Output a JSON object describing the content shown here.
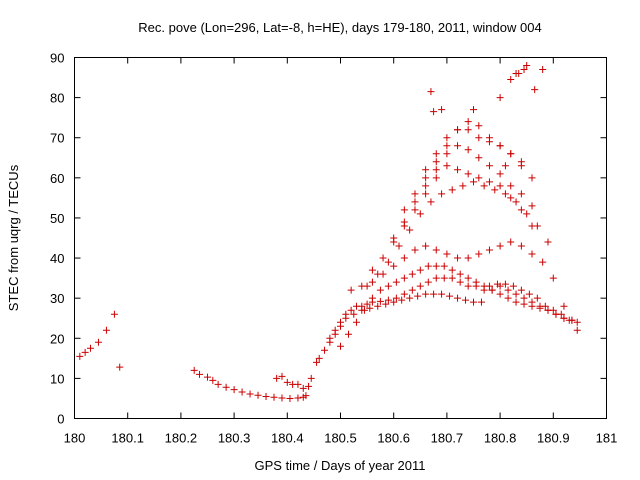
{
  "chart_data": {
    "type": "scatter",
    "title": "Rec. pove (Lon=296, Lat=-8, h=HE), days 179-180, 2011, window 004",
    "xlabel": "GPS time / Days of year 2011",
    "ylabel": "STEC from uqrg / TECUs",
    "xlim": [
      180,
      181
    ],
    "ylim": [
      0,
      90
    ],
    "xticks": [
      180,
      180.1,
      180.2,
      180.3,
      180.4,
      180.5,
      180.6,
      180.7,
      180.8,
      180.9,
      181
    ],
    "xtick_labels": [
      "180",
      "180.1",
      "180.2",
      "180.3",
      "180.4",
      "180.5",
      "180.6",
      "180.7",
      "180.8",
      "180.9",
      "181"
    ],
    "yticks": [
      0,
      10,
      20,
      30,
      40,
      50,
      60,
      70,
      80,
      90
    ],
    "ytick_labels": [
      "0",
      "10",
      "20",
      "30",
      "40",
      "50",
      "60",
      "70",
      "80",
      "90"
    ],
    "grid": false,
    "marker": "+",
    "color": "#cc0000",
    "x": [
      180.01,
      180.02,
      180.03,
      180.045,
      180.06,
      180.075,
      180.085,
      180.225,
      180.235,
      180.25,
      180.26,
      180.27,
      180.285,
      180.3,
      180.315,
      180.33,
      180.345,
      180.36,
      180.375,
      180.39,
      180.405,
      180.42,
      180.43,
      180.435,
      180.38,
      180.39,
      180.4,
      180.41,
      180.42,
      180.43,
      180.44,
      180.445,
      180.455,
      180.46,
      180.47,
      180.48,
      180.49,
      180.5,
      180.51,
      180.52,
      180.53,
      180.54,
      180.55,
      180.56,
      180.575,
      180.59,
      180.605,
      180.62,
      180.635,
      180.65,
      180.665,
      180.68,
      180.695,
      180.71,
      180.725,
      180.74,
      180.755,
      180.77,
      180.785,
      180.8,
      180.815,
      180.83,
      180.845,
      180.86,
      180.875,
      180.89,
      180.905,
      180.92,
      180.935,
      180.945,
      180.48,
      180.49,
      180.5,
      180.51,
      180.525,
      180.54,
      180.555,
      180.57,
      180.585,
      180.6,
      180.615,
      180.63,
      180.645,
      180.66,
      180.675,
      180.69,
      180.705,
      180.72,
      180.735,
      180.75,
      180.765,
      180.78,
      180.795,
      180.81,
      180.825,
      180.84,
      180.855,
      180.87,
      180.885,
      180.9,
      180.915,
      180.93,
      180.945,
      180.5,
      180.515,
      180.53,
      180.545,
      180.56,
      180.575,
      180.59,
      180.605,
      180.62,
      180.635,
      180.65,
      180.665,
      180.68,
      180.695,
      180.71,
      180.725,
      180.74,
      180.755,
      180.77,
      180.785,
      180.8,
      180.815,
      180.83,
      180.845,
      180.86,
      180.875,
      180.89,
      180.905,
      180.92,
      180.935,
      180.52,
      180.54,
      180.56,
      180.58,
      180.6,
      180.62,
      180.64,
      180.66,
      180.68,
      180.7,
      180.72,
      180.74,
      180.76,
      180.78,
      180.8,
      180.82,
      180.84,
      180.86,
      180.88,
      180.9,
      180.92,
      180.55,
      180.57,
      180.59,
      180.61,
      180.63,
      180.65,
      180.67,
      180.69,
      180.71,
      180.73,
      180.75,
      180.77,
      180.79,
      180.81,
      180.83,
      180.85,
      180.87,
      180.89,
      180.56,
      180.58,
      180.6,
      180.62,
      180.64,
      180.66,
      180.68,
      180.7,
      180.72,
      180.74,
      180.76,
      180.78,
      180.8,
      180.82,
      180.84,
      180.86,
      180.6,
      180.62,
      180.64,
      180.66,
      180.68,
      180.7,
      180.72,
      180.74,
      180.76,
      180.78,
      180.8,
      180.82,
      180.84,
      180.86,
      180.62,
      180.64,
      180.66,
      180.68,
      180.7,
      180.72,
      180.74,
      180.76,
      180.78,
      180.8,
      180.82,
      180.84,
      180.66,
      180.68,
      180.7,
      180.72,
      180.74,
      180.76,
      180.78,
      180.8,
      180.82,
      180.84,
      180.86,
      180.82,
      180.83,
      180.845,
      180.865,
      180.88,
      180.85,
      180.835,
      180.8,
      180.81,
      180.75,
      180.67,
      180.675,
      180.69
    ],
    "y": [
      15.5,
      16.5,
      17.5,
      19,
      22,
      26,
      12.8,
      12,
      11,
      10.3,
      9.5,
      8.5,
      7.8,
      7.2,
      6.6,
      6.1,
      5.8,
      5.5,
      5.3,
      5.1,
      5.0,
      5.1,
      5.3,
      5.7,
      10,
      10.5,
      9,
      8.5,
      8.5,
      7.5,
      8,
      10,
      14,
      15,
      17,
      20,
      22,
      24,
      26,
      27,
      28,
      28,
      28.5,
      29,
      29.2,
      29.5,
      30,
      31,
      32,
      33,
      34,
      35,
      35,
      35,
      34,
      33,
      33,
      32,
      32,
      31,
      30,
      29,
      28.5,
      28,
      27.5,
      27,
      26,
      25,
      24.5,
      24,
      19,
      21,
      23,
      25,
      26,
      27,
      27.5,
      28,
      28.5,
      29,
      29.5,
      30,
      30.5,
      31,
      31,
      31,
      30.5,
      30,
      29.5,
      29,
      29,
      33,
      33.5,
      33.5,
      33,
      32,
      31,
      30,
      28,
      27,
      26,
      24.5,
      22,
      18,
      21,
      24,
      27,
      30,
      32,
      33,
      34,
      35,
      36,
      37,
      38,
      38,
      38,
      37,
      36,
      35,
      34,
      33,
      32,
      33,
      32,
      31,
      30,
      29,
      28,
      27,
      26,
      25,
      24.5,
      32,
      33,
      34,
      36,
      38,
      40,
      42,
      43,
      42,
      41,
      40,
      40,
      41,
      42,
      43,
      44,
      43,
      41,
      39,
      35,
      28,
      33,
      36,
      39,
      43,
      47,
      51,
      54,
      56,
      57,
      58,
      59,
      58,
      57,
      56,
      54,
      51,
      48,
      44,
      37,
      40,
      44,
      48,
      52,
      56,
      60,
      63,
      62,
      61,
      60,
      59,
      58,
      55,
      52,
      48,
      45,
      49,
      54,
      58,
      62,
      66,
      68,
      67,
      65,
      63,
      61,
      58,
      56,
      53,
      52,
      56,
      60,
      64,
      68,
      72,
      74,
      73,
      70,
      68,
      66,
      64,
      62,
      66,
      70,
      72,
      72,
      70,
      69,
      68,
      66,
      63,
      60,
      84.5,
      86,
      87,
      82,
      87,
      88,
      86,
      80,
      63,
      77,
      81.5,
      76.5,
      77
    ],
    "annotations": []
  }
}
